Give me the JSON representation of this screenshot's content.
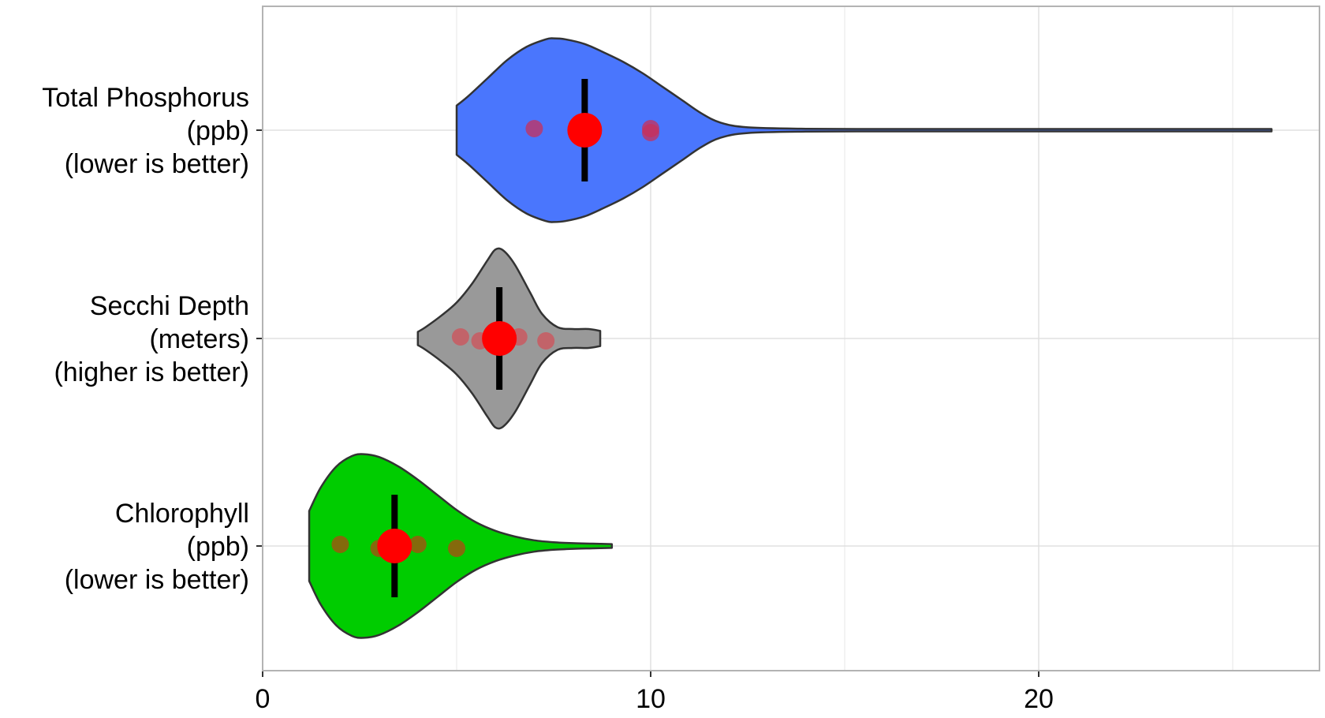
{
  "chart_data": {
    "type": "violin",
    "orientation": "horizontal",
    "title": "",
    "xlabel": "",
    "ylabel": "",
    "xlim": [
      0,
      27.2
    ],
    "x_ticks": [
      0,
      10,
      20
    ],
    "grid": true,
    "legend": "none",
    "categories": [
      {
        "label_lines": [
          "Total Phosphorus",
          "(ppb)",
          "(lower is better)"
        ],
        "color": "#4a76fd",
        "range": [
          5,
          26
        ],
        "density_profile": [
          [
            5.0,
            0.26
          ],
          [
            5.3,
            0.36
          ],
          [
            5.8,
            0.55
          ],
          [
            6.3,
            0.74
          ],
          [
            6.8,
            0.88
          ],
          [
            7.3,
            0.96
          ],
          [
            7.5,
            0.97
          ],
          [
            7.8,
            0.96
          ],
          [
            8.3,
            0.91
          ],
          [
            8.8,
            0.82
          ],
          [
            9.3,
            0.72
          ],
          [
            9.8,
            0.6
          ],
          [
            10.3,
            0.46
          ],
          [
            10.8,
            0.32
          ],
          [
            11.3,
            0.18
          ],
          [
            11.8,
            0.08
          ],
          [
            12.5,
            0.03
          ],
          [
            14.0,
            0.015
          ],
          [
            16.0,
            0.01
          ],
          [
            18.0,
            0.01
          ],
          [
            20.0,
            0.008
          ],
          [
            22.0,
            0.008
          ],
          [
            24.0,
            0.01
          ],
          [
            26.0,
            0.012
          ]
        ],
        "points": [
          7,
          10,
          10
        ],
        "median": 8.3,
        "whisker": [
          8.3,
          8.3
        ],
        "color_points": "#c8305a"
      },
      {
        "label_lines": [
          "Secchi Depth",
          "(meters)",
          "(higher is better)"
        ],
        "color": "#999999",
        "range": [
          4.0,
          8.7
        ],
        "density_profile": [
          [
            4.0,
            0.07
          ],
          [
            4.2,
            0.12
          ],
          [
            4.6,
            0.24
          ],
          [
            5.0,
            0.38
          ],
          [
            5.4,
            0.58
          ],
          [
            5.8,
            0.83
          ],
          [
            6.0,
            0.94
          ],
          [
            6.2,
            0.93
          ],
          [
            6.5,
            0.78
          ],
          [
            6.9,
            0.48
          ],
          [
            7.2,
            0.26
          ],
          [
            7.6,
            0.12
          ],
          [
            8.0,
            0.1
          ],
          [
            8.4,
            0.1
          ],
          [
            8.7,
            0.08
          ]
        ],
        "points": [
          5.1,
          5.6,
          6.6,
          7.3
        ],
        "median": 6.1,
        "whisker": [
          6.1,
          6.1
        ],
        "color_points": "#d0525a"
      },
      {
        "label_lines": [
          "Chlorophyll",
          "(ppb)",
          "(lower is better)"
        ],
        "color": "#00cc00",
        "range": [
          1.2,
          9.0
        ],
        "density_profile": [
          [
            1.2,
            0.37
          ],
          [
            1.5,
            0.62
          ],
          [
            1.9,
            0.84
          ],
          [
            2.3,
            0.95
          ],
          [
            2.6,
            0.97
          ],
          [
            3.0,
            0.94
          ],
          [
            3.5,
            0.84
          ],
          [
            4.0,
            0.7
          ],
          [
            4.5,
            0.54
          ],
          [
            5.0,
            0.38
          ],
          [
            5.5,
            0.25
          ],
          [
            6.0,
            0.16
          ],
          [
            6.5,
            0.1
          ],
          [
            7.0,
            0.06
          ],
          [
            7.5,
            0.04
          ],
          [
            8.0,
            0.03
          ],
          [
            8.5,
            0.025
          ],
          [
            9.0,
            0.02
          ]
        ],
        "points": [
          2,
          3,
          4,
          5
        ],
        "median": 3.4,
        "whisker": [
          3.4,
          3.4
        ],
        "color_points": "#b04a10"
      }
    ]
  },
  "axis": {
    "tick_labels": [
      "0",
      "10",
      "20"
    ]
  }
}
